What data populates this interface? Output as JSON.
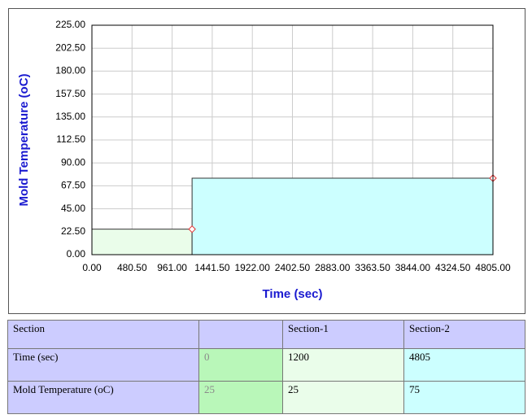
{
  "chart_data": {
    "type": "step-area",
    "x_label": "Time (sec)",
    "y_label": "Mold Temperature (oC)",
    "x": [
      0,
      1200,
      4805
    ],
    "values": [
      25,
      25,
      75
    ],
    "segment_colors": [
      "#eafdea",
      "#ccffff"
    ],
    "line_color": "#333333",
    "marker_color": "#e03030",
    "xlim": [
      0,
      4805
    ],
    "ylim": [
      0,
      225
    ],
    "grid": true,
    "xticks": [
      {
        "value": 0,
        "label": "0.00"
      },
      {
        "value": 480.5,
        "label": "480.50"
      },
      {
        "value": 961,
        "label": "961.00"
      },
      {
        "value": 1441.5,
        "label": "1441.50"
      },
      {
        "value": 1922,
        "label": "1922.00"
      },
      {
        "value": 2402.5,
        "label": "2402.50"
      },
      {
        "value": 2883,
        "label": "2883.00"
      },
      {
        "value": 3363.5,
        "label": "3363.50"
      },
      {
        "value": 3844,
        "label": "3844.00"
      },
      {
        "value": 4324.5,
        "label": "4324.50"
      },
      {
        "value": 4805,
        "label": "4805.00"
      }
    ],
    "yticks": [
      {
        "value": 0,
        "label": "0.00"
      },
      {
        "value": 22.5,
        "label": "22.50"
      },
      {
        "value": 45,
        "label": "45.00"
      },
      {
        "value": 67.5,
        "label": "67.50"
      },
      {
        "value": 90,
        "label": "90.00"
      },
      {
        "value": 112.5,
        "label": "112.50"
      },
      {
        "value": 135,
        "label": "135.00"
      },
      {
        "value": 157.5,
        "label": "157.50"
      },
      {
        "value": 180,
        "label": "180.00"
      },
      {
        "value": 202.5,
        "label": "202.50"
      },
      {
        "value": 225,
        "label": "225.00"
      }
    ]
  },
  "table": {
    "header": [
      "Section",
      "Section-1",
      "Section-2"
    ]
  }
}
